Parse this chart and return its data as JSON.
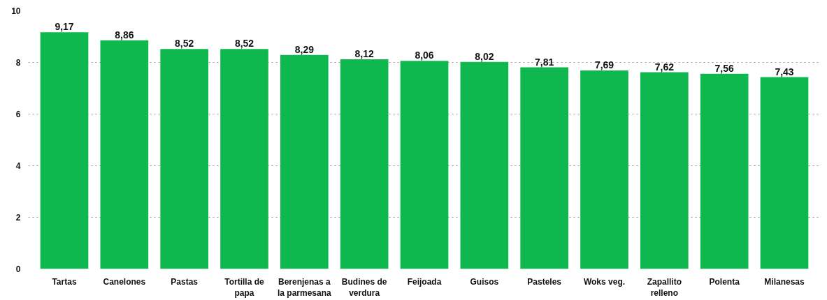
{
  "chart_data": {
    "type": "bar",
    "categories": [
      "Tartas",
      "Canelones",
      "Pastas",
      "Tortilla de papa",
      "Berenjenas a la parmesana",
      "Budines de verdura",
      "Feijoada",
      "Guisos",
      "Pasteles",
      "Woks veg.",
      "Zapallito relleno",
      "Polenta",
      "Milanesas"
    ],
    "values": [
      9.17,
      8.86,
      8.52,
      8.52,
      8.29,
      8.12,
      8.06,
      8.02,
      7.81,
      7.69,
      7.62,
      7.56,
      7.43
    ],
    "value_labels": [
      "9,17",
      "8,86",
      "8,52",
      "8,52",
      "8,29",
      "8,12",
      "8,06",
      "8,02",
      "7,81",
      "7,69",
      "7,62",
      "7,56",
      "7,43"
    ],
    "color": "#0fb84e",
    "ylim": [
      0,
      10
    ],
    "yticks": [
      0,
      2,
      4,
      6,
      8,
      10
    ],
    "grid": "y"
  }
}
